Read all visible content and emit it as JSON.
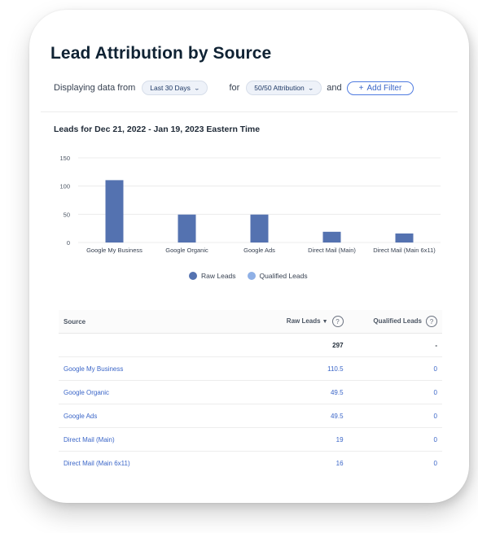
{
  "page": {
    "title": "Lead Attribution by Source"
  },
  "filters": {
    "prefix": "Displaying data from",
    "date_range": "Last 30 Days",
    "for_text": "for",
    "attribution": "50/50 Attribution",
    "and_text": "and",
    "add_filter": "Add Filter"
  },
  "chart": {
    "heading": "Leads for Dec 21, 2022 - Jan 19, 2023 Eastern Time"
  },
  "legend": {
    "raw": "Raw Leads",
    "qualified": "Qualified Leads"
  },
  "colors": {
    "raw": "#5472b0",
    "qualified": "#8fb0e6",
    "link": "#3b66c8"
  },
  "chart_data": {
    "type": "bar",
    "categories": [
      "Google My Business",
      "Google Organic",
      "Google Ads",
      "Direct Mail (Main)",
      "Direct Mail (Main 6x11)"
    ],
    "series": [
      {
        "name": "Raw Leads",
        "values": [
          110.5,
          49.5,
          49.5,
          19,
          16
        ]
      },
      {
        "name": "Qualified Leads",
        "values": [
          0,
          0,
          0,
          0,
          0
        ]
      }
    ],
    "yticks": [
      0,
      50,
      100,
      150
    ],
    "ylim": [
      0,
      150
    ],
    "grid": true,
    "legend": "bottom"
  },
  "table": {
    "headers": {
      "source": "Source",
      "raw": "Raw Leads",
      "qualified": "Qualified Leads"
    },
    "total": {
      "raw": "297",
      "qualified": "-"
    },
    "rows": [
      {
        "source": "Google My Business",
        "raw": "110.5",
        "qualified": "0"
      },
      {
        "source": "Google Organic",
        "raw": "49.5",
        "qualified": "0"
      },
      {
        "source": "Google Ads",
        "raw": "49.5",
        "qualified": "0"
      },
      {
        "source": "Direct Mail (Main)",
        "raw": "19",
        "qualified": "0"
      },
      {
        "source": "Direct Mail (Main 6x11)",
        "raw": "16",
        "qualified": "0"
      }
    ]
  }
}
